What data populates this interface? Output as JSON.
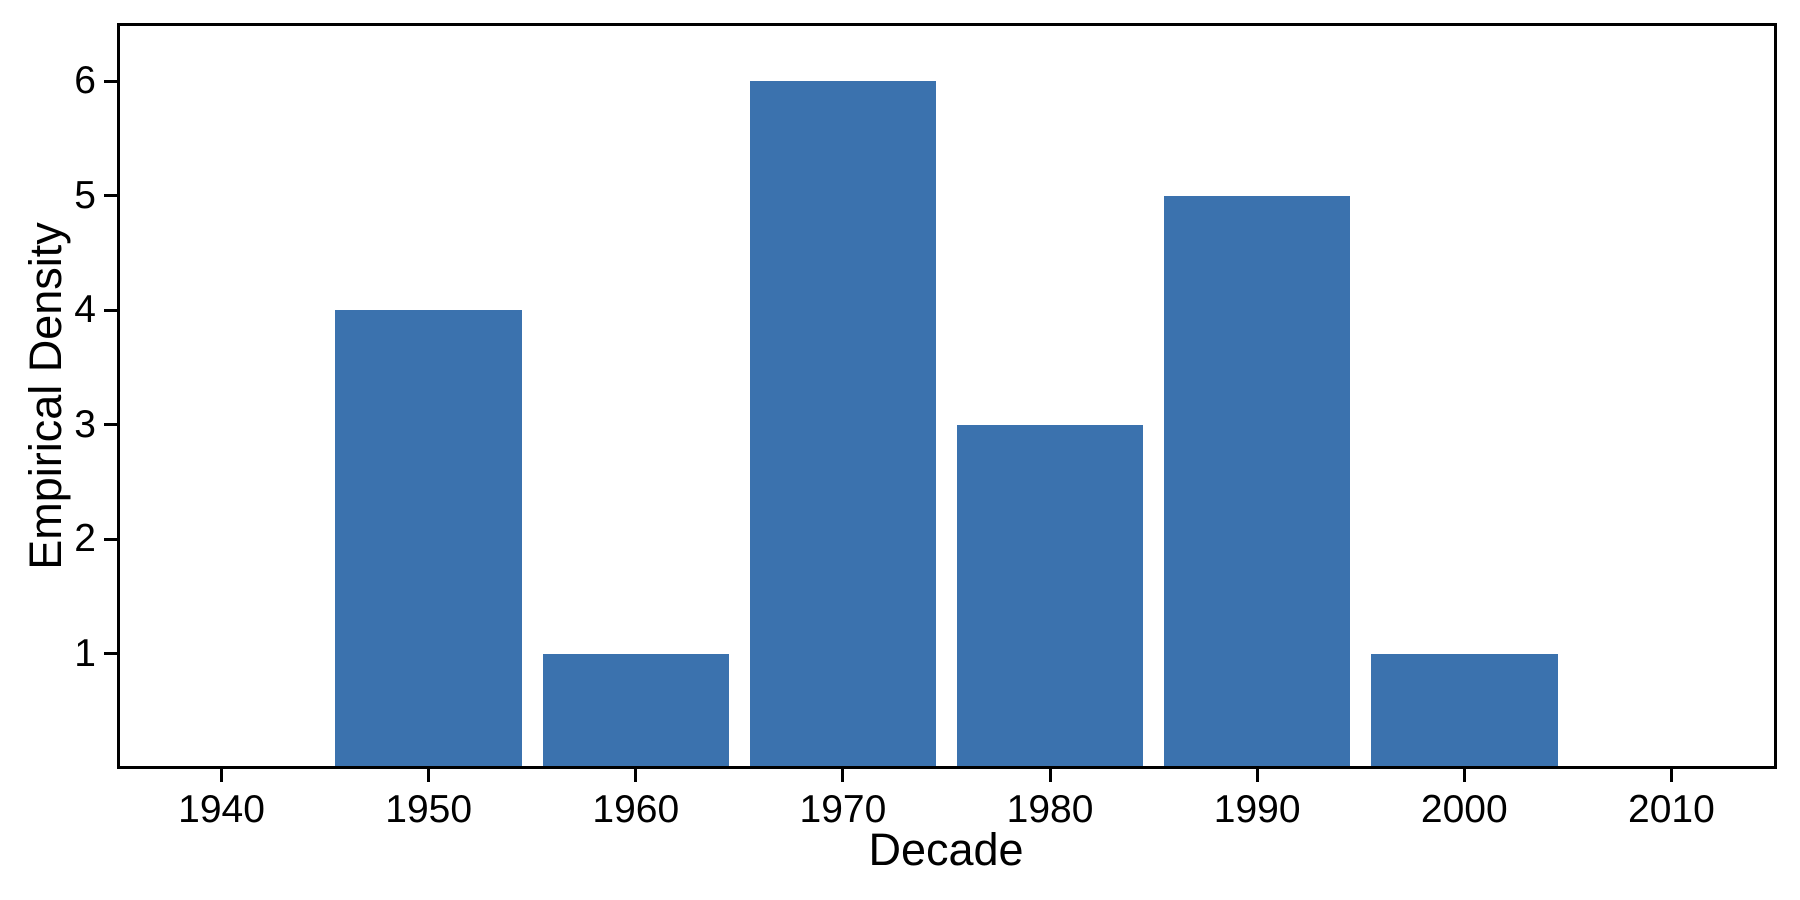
{
  "chart_data": {
    "type": "bar",
    "title": "",
    "xlabel": "Decade",
    "ylabel": "Empirical Density",
    "categories": [
      1950,
      1960,
      1970,
      1980,
      1990,
      2000
    ],
    "values": [
      4,
      1,
      6,
      3,
      5,
      1
    ],
    "x_ticks": [
      1940,
      1950,
      1960,
      1970,
      1980,
      1990,
      2000,
      2010
    ],
    "y_ticks": [
      1,
      2,
      3,
      4,
      5,
      6
    ],
    "xlim": [
      1935,
      2015
    ],
    "ylim": [
      0,
      6.5
    ],
    "bar_width_x_units": 9,
    "grid": false,
    "legend_position": "none",
    "bar_color": "#3b72ae",
    "axis_color": "#000000",
    "text_color": "#000000",
    "background_color": "#ffffff"
  }
}
